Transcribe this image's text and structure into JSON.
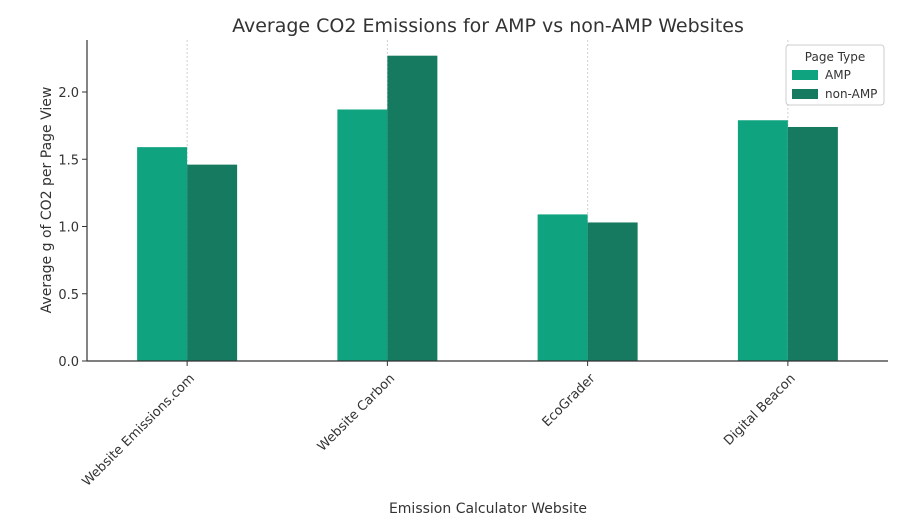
{
  "chart_data": {
    "type": "bar",
    "title": "Average CO2 Emissions for AMP vs non-AMP Websites",
    "xlabel": "Emission Calculator Website",
    "ylabel": "Average g of CO2 per Page View",
    "categories": [
      "Website Emissions.com",
      "Website Carbon",
      "EcoGrader",
      "Digital Beacon"
    ],
    "series": [
      {
        "name": "AMP",
        "values": [
          1.59,
          1.87,
          1.09,
          1.79
        ],
        "color": "#10a37f"
      },
      {
        "name": "non-AMP",
        "values": [
          1.46,
          2.27,
          1.03,
          1.74
        ],
        "color": "#167a61"
      }
    ],
    "ylim": [
      0,
      2.4
    ],
    "yticks": [
      "0.0",
      "0.5",
      "1.0",
      "1.5",
      "2.0"
    ],
    "grid": "vertical dotted at category centers",
    "legend": {
      "title": "Page Type",
      "placement": "top-right"
    }
  }
}
